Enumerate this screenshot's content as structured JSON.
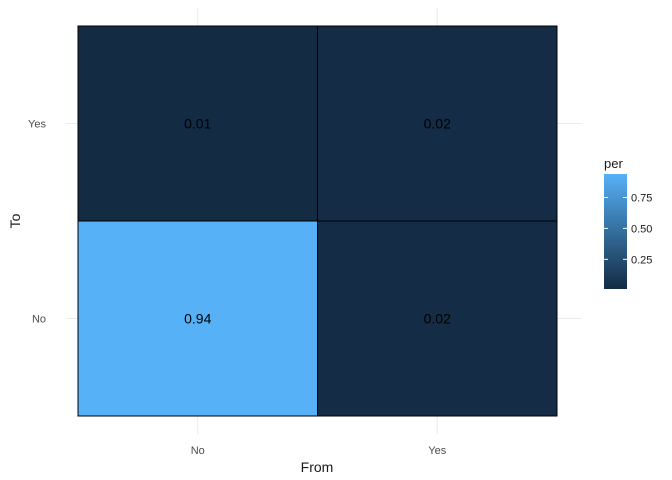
{
  "chart_data": {
    "type": "heatmap",
    "title": "",
    "xlabel": "From",
    "ylabel": "To",
    "x_categories": [
      "No",
      "Yes"
    ],
    "y_categories": [
      "No",
      "Yes"
    ],
    "cells": [
      {
        "x": "No",
        "y": "Yes",
        "value": 0.01,
        "label": "0.01"
      },
      {
        "x": "Yes",
        "y": "Yes",
        "value": 0.02,
        "label": "0.02"
      },
      {
        "x": "No",
        "y": "No",
        "value": 0.94,
        "label": "0.94"
      },
      {
        "x": "Yes",
        "y": "No",
        "value": 0.02,
        "label": "0.02"
      }
    ],
    "legend": {
      "title": "per",
      "placement": "right",
      "min": 0.01,
      "max": 0.94,
      "ticks": [
        {
          "value": 0.25,
          "label": "0.25"
        },
        {
          "value": 0.5,
          "label": "0.50"
        },
        {
          "value": 0.75,
          "label": "0.75"
        }
      ],
      "color_low": "#132b43",
      "color_high": "#56b1f7"
    },
    "grid": true
  }
}
